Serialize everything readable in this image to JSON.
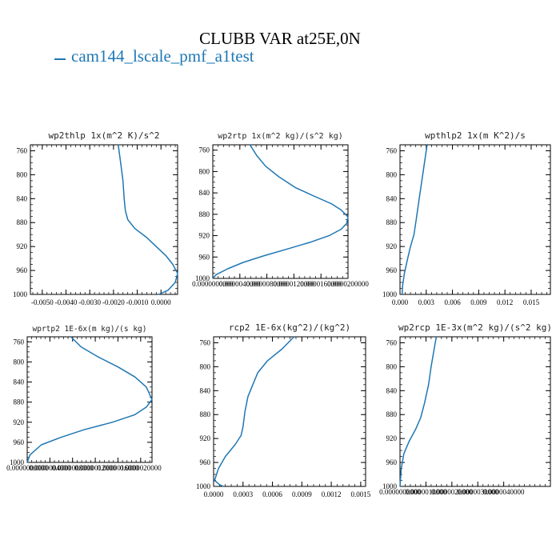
{
  "title": "CLUBB VAR at25E,0N",
  "legend": {
    "label": "cam144_lscale_pmf_a1test",
    "color": "#1f77b4"
  },
  "chart_data": [
    {
      "type": "line",
      "title": "wp2thlp  1x(m^2 K)/s^2",
      "ylim": [
        1000,
        750
      ],
      "y_ticks": [
        "760",
        "800",
        "840",
        "880",
        "920",
        "960",
        "1000"
      ],
      "xlim": [
        -0.0055,
        0.0007
      ],
      "x_ticks": [
        -0.005,
        -0.004,
        -0.003,
        -0.002,
        -0.001,
        0.0
      ],
      "x_tick_labels": [
        "-0.0050",
        "-0.0040",
        "-0.0030",
        "-0.0020",
        "-0.0010",
        "0.0000"
      ],
      "series": [
        {
          "x": [
            -0.0018,
            -0.0017,
            -0.0016,
            -0.00155,
            -0.0015,
            -0.0014,
            -0.0011,
            -0.0006,
            -0.0002,
            0.0002,
            0.0005,
            0.0007,
            0.0006,
            0.0003,
            -0.0001
          ],
          "y": [
            750,
            780,
            810,
            840,
            860,
            875,
            890,
            905,
            920,
            935,
            950,
            965,
            980,
            993,
            1000
          ]
        }
      ]
    },
    {
      "type": "line",
      "title": "wp2rtp  1x(m^2 kg)/(s^2 kg)",
      "ylim": [
        1000,
        750
      ],
      "y_ticks": [
        "760",
        "800",
        "840",
        "880",
        "920",
        "960",
        "1000"
      ],
      "xlim": [
        0.0,
        2e-05
      ],
      "x_ticks": [
        0.0,
        4e-06,
        8e-06,
        1.2e-05,
        1.6e-05,
        2e-05
      ],
      "x_tick_labels": [
        "0.0000000000",
        "0.0000040000",
        "0.0000080000",
        "0.0000120000",
        "0.0000160000",
        "0.0000200000"
      ],
      "series": [
        {
          "x": [
            5.5e-06,
            6.5e-06,
            7.8e-06,
            9.8e-06,
            1.22e-05,
            1.48e-05,
            1.75e-05,
            1.9e-05,
            2e-05,
            1.98e-05,
            1.9e-05,
            1.72e-05,
            1.45e-05,
            1.1e-05,
            7.5e-06,
            4.5e-06,
            2.2e-06,
            5e-07,
            0.0
          ],
          "y": [
            750,
            770,
            790,
            810,
            830,
            845,
            860,
            872,
            885,
            897,
            908,
            920,
            932,
            945,
            958,
            970,
            982,
            993,
            1000
          ]
        }
      ]
    },
    {
      "type": "line",
      "title": "wpthlp2  1x(m K^2)/s",
      "ylim": [
        1000,
        750
      ],
      "y_ticks": [
        "760",
        "800",
        "840",
        "880",
        "920",
        "960",
        "1000"
      ],
      "xlim": [
        0.0,
        0.0172
      ],
      "x_ticks": [
        0.0,
        0.003,
        0.006,
        0.009,
        0.012,
        0.015
      ],
      "x_tick_labels": [
        "0.000",
        "0.003",
        "0.006",
        "0.009",
        "0.012",
        "0.015"
      ],
      "series": [
        {
          "x": [
            0.0031,
            0.0028,
            0.0025,
            0.0022,
            0.0019,
            0.0016,
            0.0012,
            0.0008,
            0.0005,
            0.0003,
            0.00025
          ],
          "y": [
            750,
            780,
            810,
            840,
            870,
            900,
            920,
            945,
            965,
            985,
            1000
          ]
        }
      ]
    },
    {
      "type": "line",
      "title": "wprtp2  1E-6x(m kg)/(s kg)",
      "ylim": [
        1000,
        750
      ],
      "y_ticks": [
        "760",
        "800",
        "840",
        "880",
        "920",
        "960",
        "1000"
      ],
      "xlim": [
        0.0,
        2.2e-06
      ],
      "x_ticks": [
        0.0,
        4e-07,
        8e-07,
        1.2e-06,
        1.6e-06,
        2e-06
      ],
      "x_tick_labels": [
        "0.0000000000",
        "0.0000004000",
        "0.0000008000",
        "0.0000012000",
        "0.0000016000",
        "0.0000020000"
      ],
      "series": [
        {
          "x": [
            7.7e-07,
            9.5e-07,
            1.25e-06,
            1.6e-06,
            1.9e-06,
            2.1e-06,
            2.2e-06,
            2.1e-06,
            1.9e-06,
            1.5e-06,
            1e-06,
            6e-07,
            2.5e-07,
            5e-08,
            0.0
          ],
          "y": [
            750,
            770,
            790,
            810,
            830,
            850,
            875,
            890,
            905,
            920,
            935,
            950,
            965,
            985,
            1000
          ]
        }
      ]
    },
    {
      "type": "line",
      "title": "rcp2  1E-6x(kg^2)/(kg^2)",
      "ylim": [
        1000,
        750
      ],
      "y_ticks": [
        "760",
        "800",
        "840",
        "880",
        "920",
        "960",
        "1000"
      ],
      "xlim": [
        0.0,
        0.00155
      ],
      "x_ticks": [
        0.0,
        0.0003,
        0.0006,
        0.0009,
        0.0012,
        0.0015
      ],
      "x_tick_labels": [
        "0.0000",
        "0.0003",
        "0.0006",
        "0.0009",
        "0.0012",
        "0.0015"
      ],
      "series": [
        {
          "x": [
            0.00082,
            0.0007,
            0.00055,
            0.00045,
            0.0004,
            0.00035,
            0.00032,
            0.0003,
            0.00028,
            0.00022,
            0.00012,
            5e-05,
            1e-05,
            6e-05,
            0.0001
          ],
          "y": [
            750,
            770,
            790,
            810,
            830,
            850,
            875,
            900,
            915,
            930,
            950,
            970,
            990,
            997,
            1000
          ]
        }
      ]
    },
    {
      "type": "line",
      "title": "wp2rcp  1E-3x(m^2 kg)/(s^2 kg)",
      "ylim": [
        1000,
        750
      ],
      "y_ticks": [
        "760",
        "800",
        "840",
        "880",
        "920",
        "960",
        "1000"
      ],
      "xlim": [
        0.0,
        5.8e-06
      ],
      "x_ticks": [
        0.0,
        1e-06,
        2e-06,
        3e-06,
        4e-06
      ],
      "x_tick_labels": [
        "0.0000000000",
        "0.0000010000",
        "0.0000020000",
        "0.0000030000",
        "0.0000040000"
      ],
      "series": [
        {
          "x": [
            1.4e-06,
            1.3e-06,
            1.2e-06,
            1.1e-06,
            9.5e-07,
            8e-07,
            6e-07,
            3.5e-07,
            1.5e-07,
            5e-08,
            0.0
          ],
          "y": [
            750,
            775,
            800,
            830,
            860,
            885,
            905,
            925,
            945,
            970,
            1000
          ]
        }
      ]
    }
  ]
}
